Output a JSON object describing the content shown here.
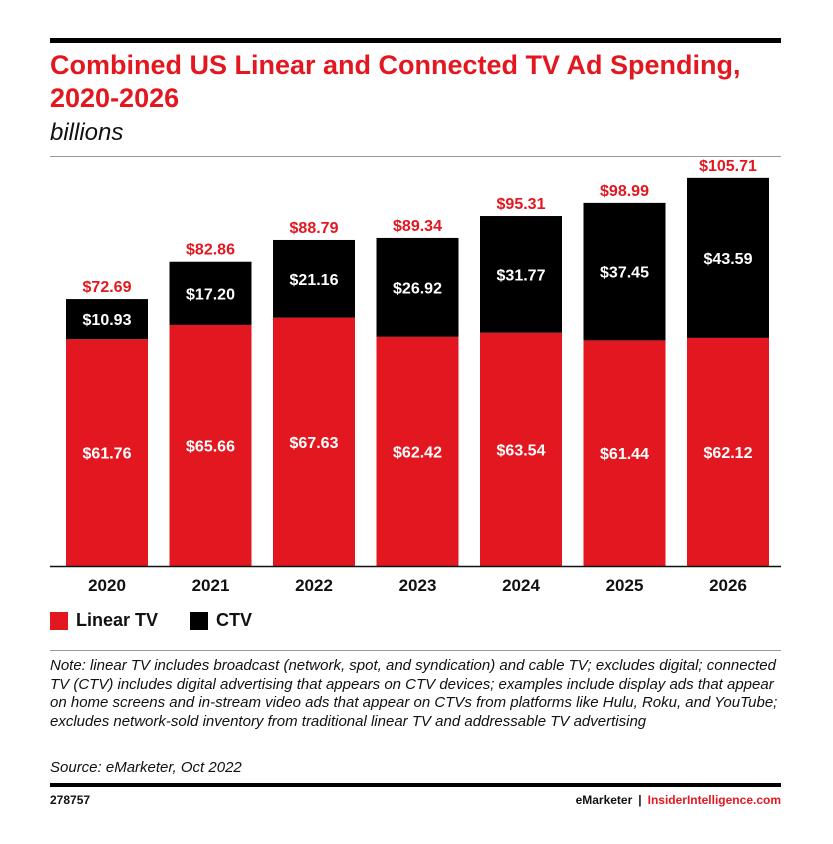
{
  "header": {
    "title": "Combined US Linear and Connected TV Ad Spending, 2020-2026",
    "subtitle": "billions"
  },
  "chart_data": {
    "type": "bar",
    "stacked": true,
    "title": "Combined US Linear and Connected TV Ad Spending, 2020-2026",
    "subtitle": "billions",
    "categories": [
      "2020",
      "2021",
      "2022",
      "2023",
      "2024",
      "2025",
      "2026"
    ],
    "series": [
      {
        "name": "Linear TV",
        "color": "#e3171f",
        "values": [
          61.76,
          65.66,
          67.63,
          62.42,
          63.54,
          61.44,
          62.12
        ],
        "labels": [
          "$61.76",
          "$65.66",
          "$67.63",
          "$62.42",
          "$63.54",
          "$61.44",
          "$62.12"
        ]
      },
      {
        "name": "CTV",
        "color": "#000000",
        "values": [
          10.93,
          17.2,
          21.16,
          26.92,
          31.77,
          37.45,
          43.59
        ],
        "labels": [
          "$10.93",
          "$17.20",
          "$21.16",
          "$26.92",
          "$31.77",
          "$37.45",
          "$43.59"
        ]
      }
    ],
    "totals": [
      72.69,
      82.86,
      88.79,
      89.34,
      95.31,
      98.99,
      105.71
    ],
    "total_labels": [
      "$72.69",
      "$82.86",
      "$88.79",
      "$89.34",
      "$95.31",
      "$98.99",
      "$105.71"
    ],
    "total_label_color": "#e3171f",
    "ylim": [
      0,
      110
    ],
    "grid": false,
    "legend": "bottom-left"
  },
  "legend": {
    "items": [
      {
        "label": "Linear TV",
        "color": "#e3171f"
      },
      {
        "label": "CTV",
        "color": "#000000"
      }
    ]
  },
  "note": "Note: linear TV includes broadcast (network, spot, and syndication) and cable TV; excludes digital; connected TV (CTV) includes digital advertising that appears on CTV devices; examples include display ads that appear on home screens and in-stream video ads that appear on CTVs from platforms like Hulu, Roku, and YouTube; excludes network-sold inventory from traditional linear TV and addressable TV advertising",
  "source": "Source: eMarketer, Oct 2022",
  "footer": {
    "chart_id": "278757",
    "brand_emarketer": "eMarketer",
    "separator": "|",
    "brand_insider": "InsiderIntelligence.com"
  },
  "colors": {
    "accent": "#e3171f",
    "dark": "#000000"
  }
}
